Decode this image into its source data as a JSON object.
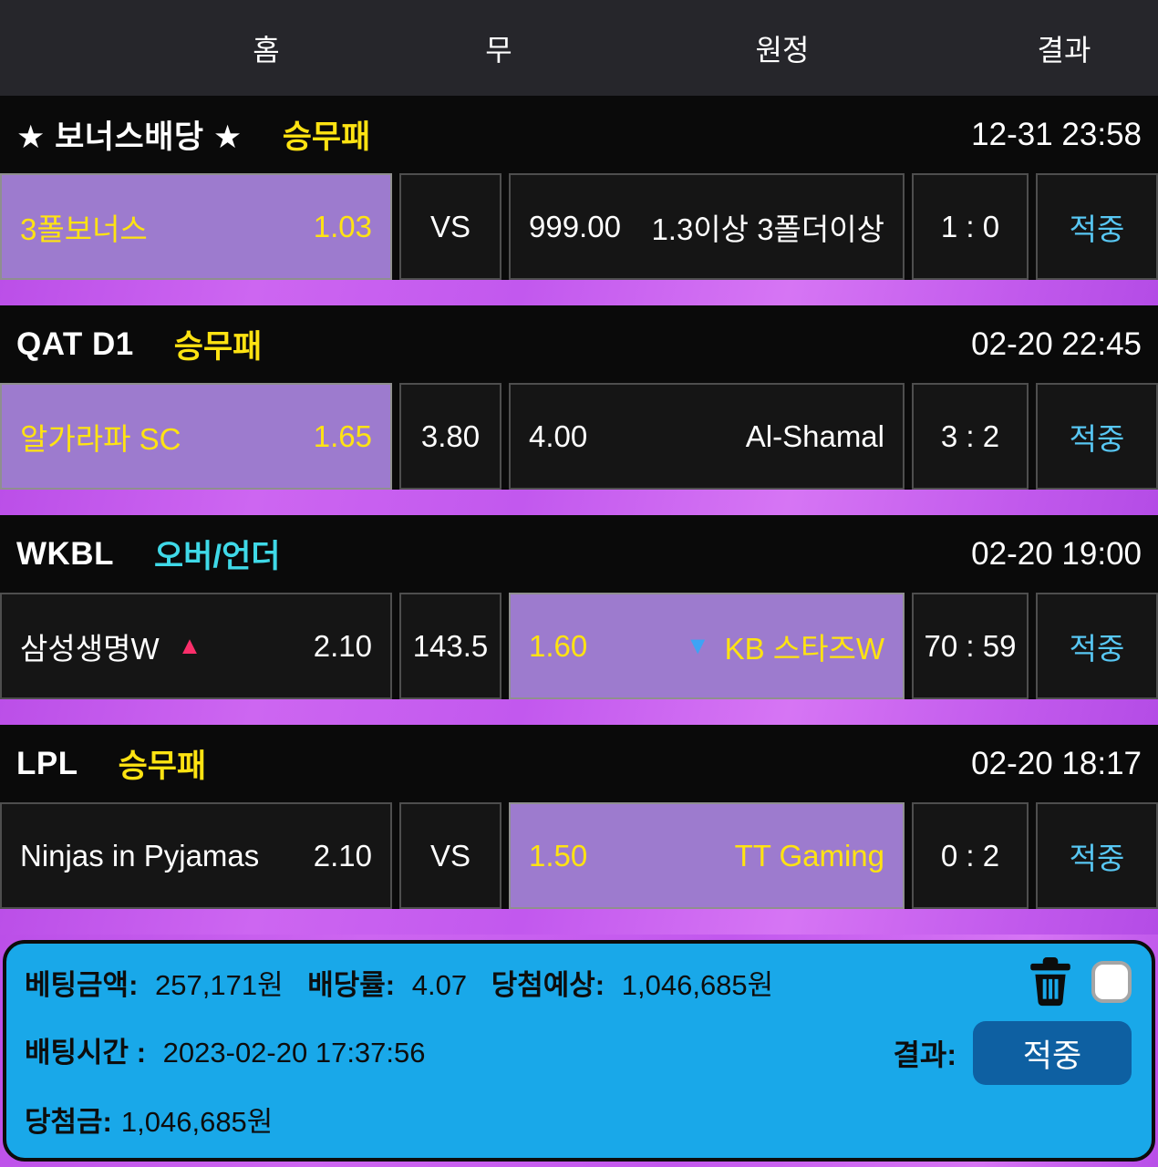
{
  "colors": {
    "yellow": "#ffe312",
    "cyan": "#3fd9e8",
    "result_blue": "#58c7f3",
    "selected_purple": "#9d7bce",
    "stripe_purple": "#c75ff0",
    "panel_blue": "#19a8e9",
    "button_blue": "#0e60a2",
    "up_red": "#fb2e6a",
    "down_blue": "#3da4f5"
  },
  "icons": {
    "delete": "trash-icon",
    "checkbox": "checkbox-unchecked",
    "up_glyph": "▲",
    "down_glyph": "▼"
  },
  "header": {
    "columns": [
      "홈",
      "무",
      "원정",
      "결과"
    ]
  },
  "sections": [
    {
      "league": "★ 보너스배당 ★",
      "market": "승무패",
      "market_color": "#ffe312",
      "datetime": "12-31 23:58",
      "home": {
        "name": "3폴보너스",
        "odds": "1.03",
        "selected": true
      },
      "draw": {
        "value": "VS"
      },
      "away": {
        "odds": "999.00",
        "name": "1.3이상 3폴더이상",
        "selected": false
      },
      "score": "1 : 0",
      "result": "적중"
    },
    {
      "league": "QAT D1",
      "market": "승무패",
      "market_color": "#ffe312",
      "datetime": "02-20 22:45",
      "home": {
        "name": "알가라파 SC",
        "odds": "1.65",
        "selected": true
      },
      "draw": {
        "value": "3.80"
      },
      "away": {
        "odds": "4.00",
        "name": "Al-Shamal",
        "selected": false
      },
      "score": "3 : 2",
      "result": "적중"
    },
    {
      "league": "WKBL",
      "market": "오버/언더",
      "market_color": "#3fd9e8",
      "datetime": "02-20 19:00",
      "home": {
        "name": "삼성생명W",
        "odds": "2.10",
        "selected": false,
        "indicator": "up"
      },
      "draw": {
        "value": "143.5"
      },
      "away": {
        "odds": "1.60",
        "name": "KB 스타즈W",
        "selected": true,
        "indicator": "down"
      },
      "score": "70 : 59",
      "result": "적중"
    },
    {
      "league": "LPL",
      "market": "승무패",
      "market_color": "#ffe312",
      "datetime": "02-20 18:17",
      "home": {
        "name": "Ninjas in Pyjamas",
        "odds": "2.10",
        "selected": false
      },
      "draw": {
        "value": "VS"
      },
      "away": {
        "odds": "1.50",
        "name": "TT Gaming",
        "selected": true
      },
      "score": "0 : 2",
      "result": "적중"
    }
  ],
  "summary": {
    "bet_amount_label": "베팅금액:",
    "bet_amount_value": "257,171원",
    "odds_label": "배당률:",
    "odds_value": "4.07",
    "expected_label": "당첨예상:",
    "expected_value": "1,046,685원",
    "bet_time_label": "배팅시간 :",
    "bet_time_value": "2023-02-20 17:37:56",
    "result_label": "결과:",
    "result_value": "적중",
    "winnings_label": "당첨금:",
    "winnings_value": "1,046,685원",
    "checkbox_checked": false
  }
}
